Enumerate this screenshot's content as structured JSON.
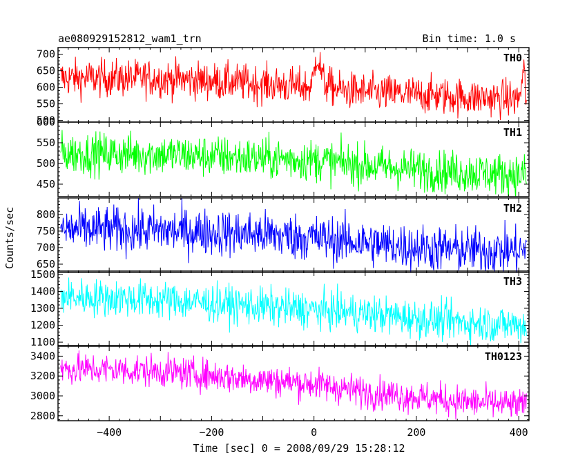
{
  "header": {
    "title": "ae080929152812_wam1_trn",
    "bin_time": "Bin time: 1.0 s"
  },
  "chart_data": {
    "type": "line",
    "ylabel": "Counts/sec",
    "xlabel": "Time [sec] 0 = 2008/09/29 15:28:12",
    "xlim": [
      -500,
      420
    ],
    "x_ticks": [
      -400,
      -200,
      0,
      200,
      400
    ],
    "x_tick_labels": [
      "−400",
      "−200",
      "0",
      "200",
      "400"
    ],
    "series": [
      {
        "name": "TH0",
        "color": "#ff0000",
        "ylim": [
          495,
          720
        ],
        "y_ticks": [
          500,
          550,
          600,
          650,
          700
        ],
        "trend_x": [
          -495,
          -300,
          -100,
          -5,
          0,
          5,
          20,
          50,
          100,
          200,
          300,
          400,
          405,
          410,
          415
        ],
        "trend_y": [
          628,
          627,
          610,
          600,
          640,
          705,
          610,
          592,
          585,
          578,
          570,
          565,
          600,
          650,
          560
        ],
        "noise": 28
      },
      {
        "name": "TH1",
        "color": "#00ff00",
        "ylim": [
          420,
          600
        ],
        "y_ticks": [
          450,
          500,
          550,
          600
        ],
        "trend_x": [
          -495,
          -300,
          -100,
          0,
          100,
          200,
          300,
          415
        ],
        "trend_y": [
          525,
          522,
          512,
          508,
          495,
          485,
          478,
          472
        ],
        "noise": 25
      },
      {
        "name": "TH2",
        "color": "#0000ff",
        "ylim": [
          625,
          850
        ],
        "y_ticks": [
          650,
          700,
          750,
          800
        ],
        "trend_x": [
          -495,
          -300,
          -100,
          0,
          100,
          200,
          300,
          415
        ],
        "trend_y": [
          755,
          752,
          740,
          730,
          715,
          700,
          692,
          690
        ],
        "noise": 35
      },
      {
        "name": "TH3",
        "color": "#00ffff",
        "ylim": [
          1080,
          1520
        ],
        "y_ticks": [
          1100,
          1200,
          1300,
          1400,
          1500
        ],
        "trend_x": [
          -495,
          -300,
          -100,
          0,
          100,
          200,
          300,
          415
        ],
        "trend_y": [
          1370,
          1350,
          1310,
          1290,
          1270,
          1240,
          1215,
          1200
        ],
        "noise": 55
      },
      {
        "name": "TH0123",
        "color": "#ff00ff",
        "ylim": [
          2750,
          3500
        ],
        "y_ticks": [
          2800,
          3000,
          3200,
          3400
        ],
        "trend_x": [
          -495,
          -300,
          -100,
          0,
          100,
          200,
          300,
          415
        ],
        "trend_y": [
          3275,
          3250,
          3160,
          3120,
          3040,
          2990,
          2940,
          2900
        ],
        "noise": 80
      }
    ]
  }
}
